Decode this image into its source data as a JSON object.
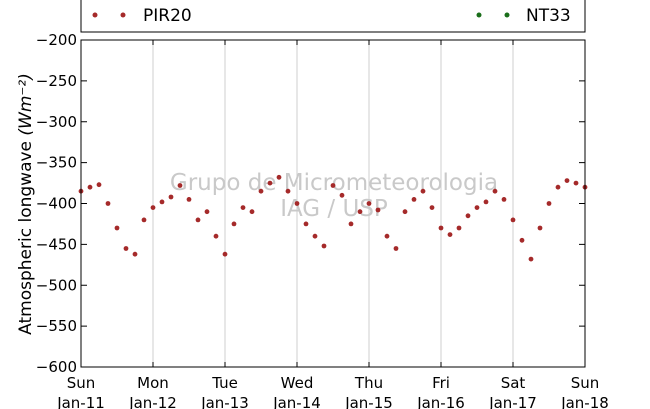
{
  "chart_data": {
    "type": "scatter",
    "title": "",
    "ylabel": "Atmospheric longwave",
    "ylabel_unit": "(Wm⁻²)",
    "ylim": [
      -600,
      -200
    ],
    "yticks": [
      -200,
      -250,
      -300,
      -350,
      -400,
      -450,
      -500,
      -550,
      -600
    ],
    "xlim": [
      "2015-01-11",
      "2015-01-18"
    ],
    "xticks": [
      {
        "day": "Sun",
        "date": "Jan-11"
      },
      {
        "day": "Mon",
        "date": "Jan-12"
      },
      {
        "day": "Tue",
        "date": "Jan-13"
      },
      {
        "day": "Wed",
        "date": "Jan-14"
      },
      {
        "day": "Thu",
        "date": "Jan-15"
      },
      {
        "day": "Fri",
        "date": "Jan-16"
      },
      {
        "day": "Sat",
        "date": "Jan-17"
      },
      {
        "day": "Sun",
        "date": "Jan-18"
      }
    ],
    "grid": "vertical",
    "legend_position": "top",
    "watermark": [
      "Grupo de Micrometeorologia",
      "IAG / USP"
    ],
    "series": [
      {
        "name": "PIR20",
        "color": "#a52a2a",
        "x": [
          "2015-01-11 00:00",
          "2015-01-11 03:00",
          "2015-01-11 06:00",
          "2015-01-11 09:00",
          "2015-01-11 12:00",
          "2015-01-11 15:00",
          "2015-01-11 18:00",
          "2015-01-11 21:00",
          "2015-01-12 00:00",
          "2015-01-12 03:00",
          "2015-01-12 06:00",
          "2015-01-12 09:00",
          "2015-01-12 12:00",
          "2015-01-12 15:00",
          "2015-01-12 18:00",
          "2015-01-12 21:00",
          "2015-01-13 00:00",
          "2015-01-13 03:00",
          "2015-01-13 06:00",
          "2015-01-13 09:00",
          "2015-01-13 12:00",
          "2015-01-13 15:00",
          "2015-01-13 18:00",
          "2015-01-13 21:00",
          "2015-01-14 00:00",
          "2015-01-14 03:00",
          "2015-01-14 06:00",
          "2015-01-14 09:00",
          "2015-01-14 12:00",
          "2015-01-14 15:00",
          "2015-01-14 18:00",
          "2015-01-14 21:00",
          "2015-01-15 00:00",
          "2015-01-15 03:00",
          "2015-01-15 06:00",
          "2015-01-15 09:00",
          "2015-01-15 12:00",
          "2015-01-15 15:00",
          "2015-01-15 18:00",
          "2015-01-15 21:00",
          "2015-01-16 00:00",
          "2015-01-16 03:00",
          "2015-01-16 06:00",
          "2015-01-16 09:00",
          "2015-01-16 12:00",
          "2015-01-16 15:00",
          "2015-01-16 18:00",
          "2015-01-16 21:00",
          "2015-01-17 00:00",
          "2015-01-17 03:00",
          "2015-01-17 06:00",
          "2015-01-17 09:00",
          "2015-01-17 12:00",
          "2015-01-17 15:00",
          "2015-01-17 18:00",
          "2015-01-17 21:00",
          "2015-01-18 00:00"
        ],
        "y": [
          -385,
          -380,
          -377,
          -400,
          -430,
          -455,
          -462,
          -420,
          -405,
          -398,
          -392,
          -378,
          -395,
          -420,
          -410,
          -440,
          -462,
          -425,
          -405,
          -410,
          -385,
          -375,
          -368,
          -385,
          -400,
          -425,
          -440,
          -452,
          -378,
          -390,
          -425,
          -410,
          -400,
          -408,
          -440,
          -455,
          -410,
          -395,
          -385,
          -405,
          -430,
          -438,
          -430,
          -415,
          -405,
          -398,
          -385,
          -395,
          -420,
          -445,
          -468,
          -430,
          -400,
          -380,
          -372,
          -375,
          -380
        ]
      },
      {
        "name": "NT33",
        "color": "#1a6e1a",
        "x": [],
        "y": []
      }
    ]
  }
}
